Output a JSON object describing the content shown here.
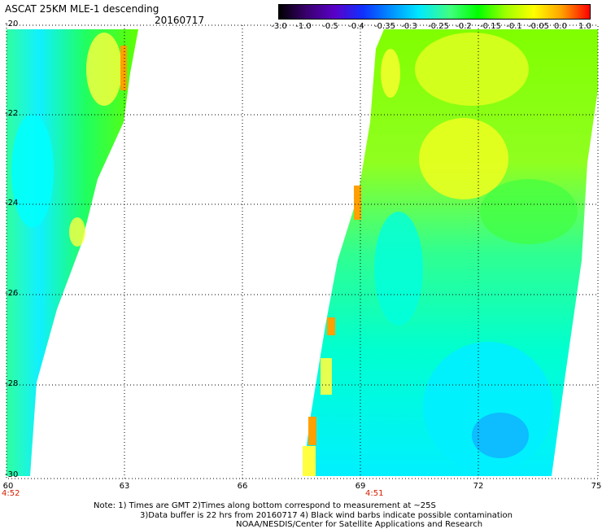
{
  "header": {
    "title": "ASCAT 25KM MLE-1 descending",
    "date": "20160717"
  },
  "colorbar": {
    "ticks": [
      "-3.0",
      "-1.0",
      "-0.5",
      "-0.4",
      "-0.35",
      "-0.3",
      "-0.25",
      "-0.2",
      "-0.15",
      "-0.1",
      "-0.05",
      "0.0",
      "1.0"
    ]
  },
  "axes": {
    "y_labels": [
      "-20",
      "-22",
      "-24",
      "-26",
      "-28",
      "-30"
    ],
    "x_labels": [
      "60",
      "63",
      "66",
      "69",
      "72",
      "75"
    ]
  },
  "times": {
    "left": "4:52",
    "right": "4:51"
  },
  "notes": {
    "line1": "Note: 1) Times are GMT 2)Times along bottom correspond to measurement at ~25S",
    "line2": "3)Data buffer is 22 hrs from 20160717 4) Black wind barbs indicate possible contamination",
    "line3": "NOAA/NESDIS/Center for Satellite Applications and Research"
  },
  "colors": {
    "cyan": "#00ffff",
    "light_green": "#40ff80",
    "green": "#00ff00",
    "yellow_green": "#a0ff00",
    "yellow": "#ffff00",
    "orange": "#ffa000",
    "red_time": "#d22000"
  }
}
